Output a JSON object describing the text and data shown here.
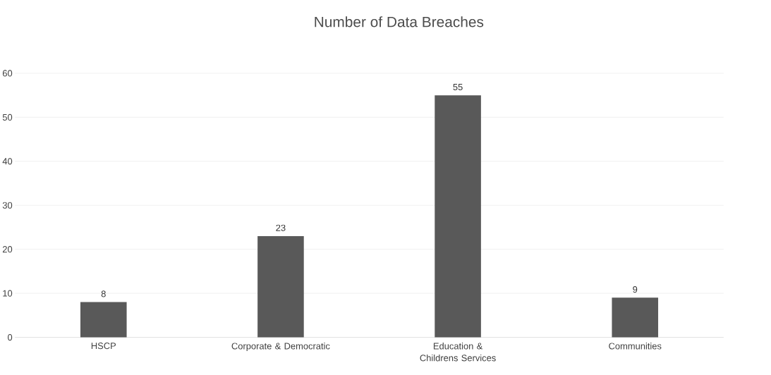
{
  "chart_data": {
    "type": "bar",
    "title": "Number of Data Breaches",
    "categories": [
      "HSCP",
      "Corporate & Democratic",
      "Education & Childrens Services",
      "Communities"
    ],
    "values": [
      8,
      23,
      55,
      9
    ],
    "color": "#595959",
    "ylim": [
      0,
      60
    ],
    "yticks": [
      0,
      10,
      20,
      30,
      40,
      50,
      60
    ],
    "grid": "y",
    "data_labels": true
  }
}
